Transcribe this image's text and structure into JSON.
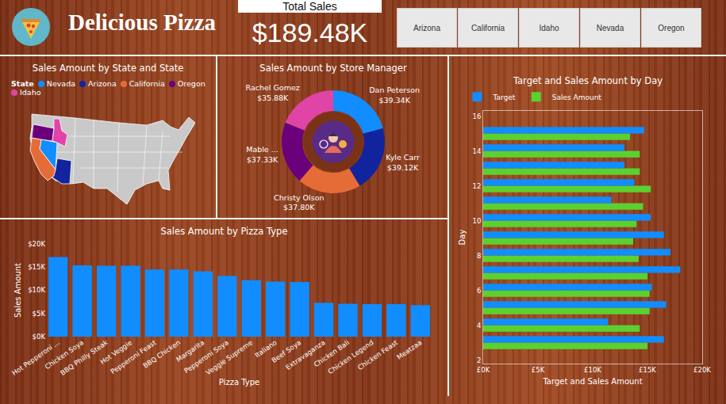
{
  "header": {
    "title": "Delicious Pizza",
    "card": {
      "label": "Total Sales",
      "value": "$189.48K"
    },
    "slicer": [
      "Arizona",
      "California",
      "Idaho",
      "Nevada",
      "Oregon"
    ]
  },
  "chart_data": [
    {
      "type": "map",
      "title": "Sales Amount by State and State",
      "legend_title": "State",
      "categories": [
        "Nevada",
        "Arizona",
        "California",
        "Oregon",
        "Idaho"
      ],
      "colors": [
        "#118DFF",
        "#12239E",
        "#E66C37",
        "#6B007B",
        "#E044A7"
      ]
    },
    {
      "type": "pie",
      "title": "Sales Amount by Store Manager",
      "categories": [
        "Dan Peterson",
        "Kyle Carr",
        "Christy Olson",
        "Mable ...",
        "Rachel Gomez"
      ],
      "values": [
        39340,
        39120,
        37800,
        37330,
        35880
      ],
      "value_labels": [
        "$39.34K",
        "$39.12K",
        "$37.80K",
        "$37.33K",
        "$35.88K"
      ],
      "colors": [
        "#118DFF",
        "#12239E",
        "#E66C37",
        "#6B007B",
        "#E044A7"
      ],
      "data_labels": true
    },
    {
      "type": "bar",
      "title": "Sales Amount by Pizza Type",
      "categories": [
        "Hot Pepperoni ...",
        "Chicken Soya",
        "BBQ Philly Steak",
        "Hot Veggie",
        "Pepperoni Feast",
        "BBQ Chicken",
        "Margarita",
        "Pepperoni Soya",
        "Veggie Supreme",
        "Italiano",
        "Beef Soya",
        "Extravaganza",
        "Chicken Bali",
        "Chicken Legend",
        "Chicken Feast",
        "Meatzaa"
      ],
      "values": [
        17200,
        15400,
        15300,
        15300,
        14500,
        14500,
        14100,
        13100,
        12200,
        11900,
        11800,
        7300,
        7100,
        7000,
        7000,
        6800
      ],
      "color": "#118DFF",
      "xlabel": "Pizza Type",
      "ylabel": "Sales Amount",
      "ylim": [
        0,
        20000
      ],
      "yticks": [
        {
          "value": 0,
          "label": "$0K"
        },
        {
          "value": 5000,
          "label": "$5K"
        },
        {
          "value": 10000,
          "label": "$10K"
        },
        {
          "value": 15000,
          "label": "$15K"
        },
        {
          "value": 20000,
          "label": "$20K"
        }
      ],
      "grid": false
    },
    {
      "type": "bar",
      "orientation": "horizontal",
      "title": "Target and Sales Amount by Day",
      "y": [
        3,
        4,
        5,
        6,
        7,
        8,
        9,
        10,
        11,
        12,
        13,
        14,
        15
      ],
      "series": [
        {
          "name": "Target",
          "color": "#118DFF",
          "values": [
            16500,
            11400,
            16700,
            15400,
            18000,
            17100,
            16500,
            15300,
            11700,
            13800,
            12900,
            12900,
            14700
          ]
        },
        {
          "name": "Sales Amount",
          "color": "#5BD130",
          "values": [
            15000,
            14300,
            15200,
            15200,
            15000,
            14200,
            13700,
            14000,
            14600,
            15300,
            14300,
            14300,
            13400
          ]
        }
      ],
      "xlabel": "Target and Sales Amount",
      "ylabel": "Day",
      "xlim": [
        0,
        20000
      ],
      "xticks": [
        {
          "value": 0,
          "label": "£0K"
        },
        {
          "value": 5000,
          "label": "£5K"
        },
        {
          "value": 10000,
          "label": "£10K"
        },
        {
          "value": 15000,
          "label": "£15K"
        },
        {
          "value": 20000,
          "label": "£20K"
        }
      ],
      "ylim": [
        1.8,
        16.3
      ],
      "yticks": [
        2,
        4,
        6,
        8,
        10,
        12,
        14,
        16
      ],
      "legend": "top left",
      "grid": false
    }
  ]
}
